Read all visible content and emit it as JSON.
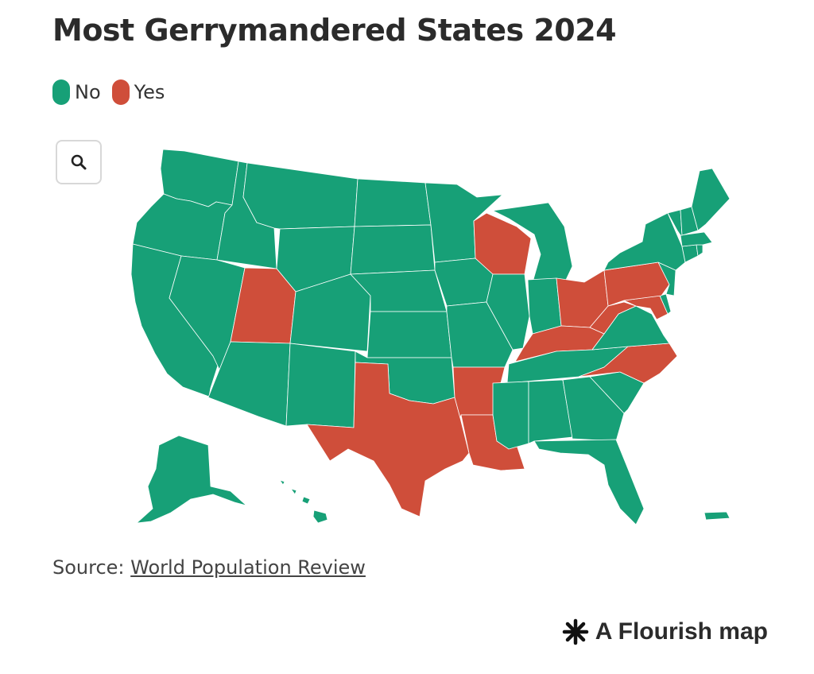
{
  "title": "Most Gerrymandered States 2024",
  "legend": [
    {
      "label": "No",
      "color": "#17a077"
    },
    {
      "label": "Yes",
      "color": "#cf4e3a"
    }
  ],
  "zoom_button": {
    "icon": "search-icon"
  },
  "map": {
    "no_color": "#17a077",
    "yes_color": "#cf4e3a",
    "gerrymandered_states": [
      "UT",
      "TX",
      "AR",
      "LA",
      "WI",
      "OH",
      "KY",
      "WV",
      "PA",
      "MD",
      "NC"
    ]
  },
  "source": {
    "label": "Source:",
    "link_text": "World Population Review"
  },
  "credit": {
    "text": "A Flourish map",
    "icon": "flourish-asterisk-icon"
  }
}
